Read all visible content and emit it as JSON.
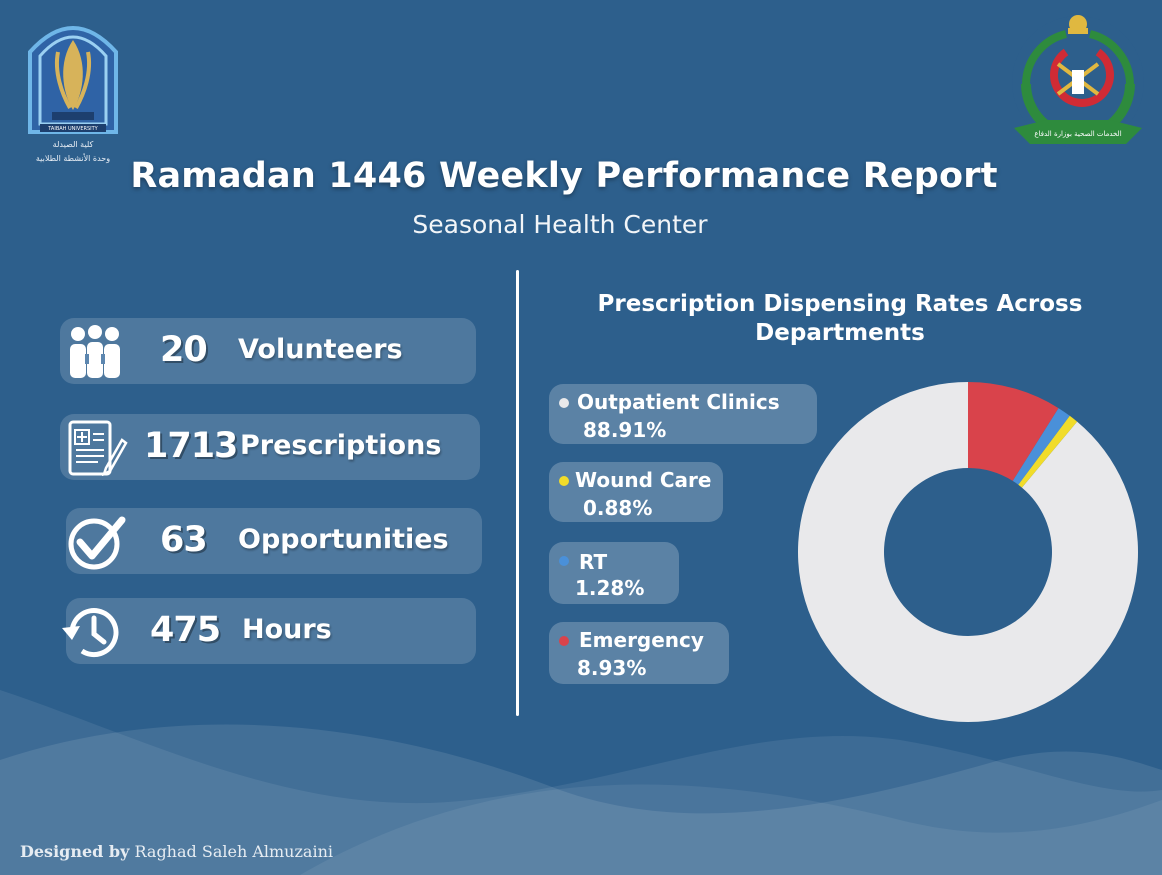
{
  "header": {
    "title": "Ramadan 1446 Weekly Performance Report",
    "subtitle": "Seasonal Health Center"
  },
  "logos": {
    "left": {
      "university": "TAIBAH UNIVERSITY",
      "line1": "كلية الصيدلة",
      "line2": "وحدة الأنشطة الطلابية"
    },
    "right": {
      "banner": "الخدمات الصحية بوزارة الدفاع"
    }
  },
  "stats": [
    {
      "number": "20",
      "label": "Volunteers",
      "icon": "volunteers-icon"
    },
    {
      "number": "1713",
      "label": "Prescriptions",
      "icon": "prescription-icon"
    },
    {
      "number": "63",
      "label": "Opportunities",
      "icon": "checkmark-icon"
    },
    {
      "number": "475",
      "label": "Hours",
      "icon": "clock-history-icon"
    }
  ],
  "chart_data": {
    "type": "pie",
    "title": "Prescription Dispensing Rates Across Departments",
    "donut": true,
    "categories": [
      "Outpatient Clinics",
      "Wound Care",
      "RT",
      "Emergency"
    ],
    "values": [
      88.91,
      0.88,
      1.28,
      8.93
    ],
    "labels": [
      "88.91%",
      "0.88%",
      "1.28%",
      "8.93%"
    ],
    "colors": [
      "#e9e9eb",
      "#f1dc2a",
      "#4a90d9",
      "#d9434b"
    ]
  },
  "footer": {
    "designed_by": "Designed by",
    "designer": "Raghad Saleh Almuzaini"
  },
  "colors": {
    "background": "#2d5f8c",
    "pill": "rgba(255,255,255,0.16)"
  }
}
